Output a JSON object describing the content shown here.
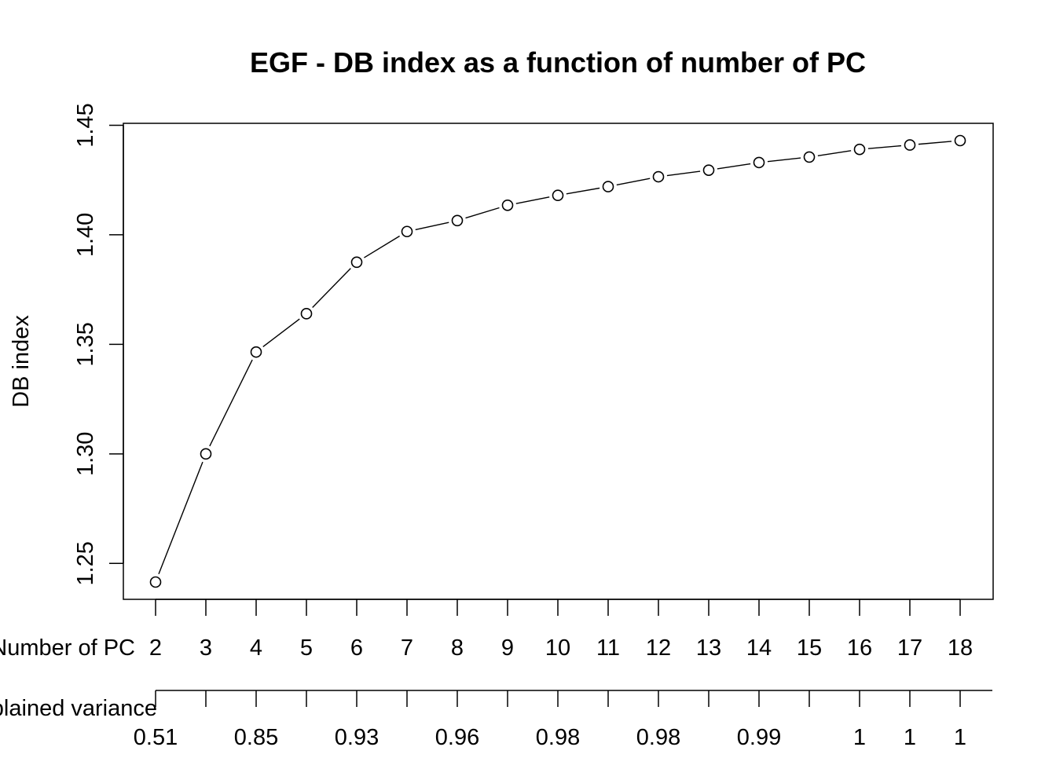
{
  "chart_data": {
    "type": "line",
    "title": "EGF - DB index as a function of number of PC",
    "ylabel": "DB index",
    "xlabel": "Number of PC",
    "x2label": "Explained variance",
    "x": [
      2,
      3,
      4,
      5,
      6,
      7,
      8,
      9,
      10,
      11,
      12,
      13,
      14,
      15,
      16,
      17,
      18
    ],
    "xlim": [
      2,
      18
    ],
    "y": [
      1.2415,
      1.3,
      1.3465,
      1.364,
      1.3875,
      1.4015,
      1.4065,
      1.4135,
      1.418,
      1.422,
      1.4265,
      1.4295,
      1.433,
      1.4355,
      1.439,
      1.441,
      1.443
    ],
    "ylim": [
      1.2415,
      1.443
    ],
    "yticks": [
      "1.25",
      "1.30",
      "1.35",
      "1.40",
      "1.45"
    ],
    "ytick_values": [
      1.25,
      1.3,
      1.35,
      1.4,
      1.45
    ],
    "xticks": [
      "2",
      "3",
      "4",
      "5",
      "6",
      "7",
      "8",
      "9",
      "10",
      "11",
      "12",
      "13",
      "14",
      "15",
      "16",
      "17",
      "18"
    ],
    "x2_tick_positions": [
      2,
      3,
      4,
      5,
      6,
      7,
      8,
      9,
      10,
      11,
      12,
      13,
      14,
      15,
      16,
      17,
      18
    ],
    "x2_labels": [
      {
        "at": 2,
        "label": "0.51"
      },
      {
        "at": 4,
        "label": "0.85"
      },
      {
        "at": 6,
        "label": "0.93"
      },
      {
        "at": 8,
        "label": "0.96"
      },
      {
        "at": 10,
        "label": "0.98"
      },
      {
        "at": 12,
        "label": "0.98"
      },
      {
        "at": 14,
        "label": "0.99"
      },
      {
        "at": 16,
        "label": "1"
      },
      {
        "at": 17,
        "label": "1"
      },
      {
        "at": 18,
        "label": "1"
      }
    ],
    "marker": "open-circle",
    "line_color": "#000000",
    "grid": false,
    "legend": "none"
  }
}
